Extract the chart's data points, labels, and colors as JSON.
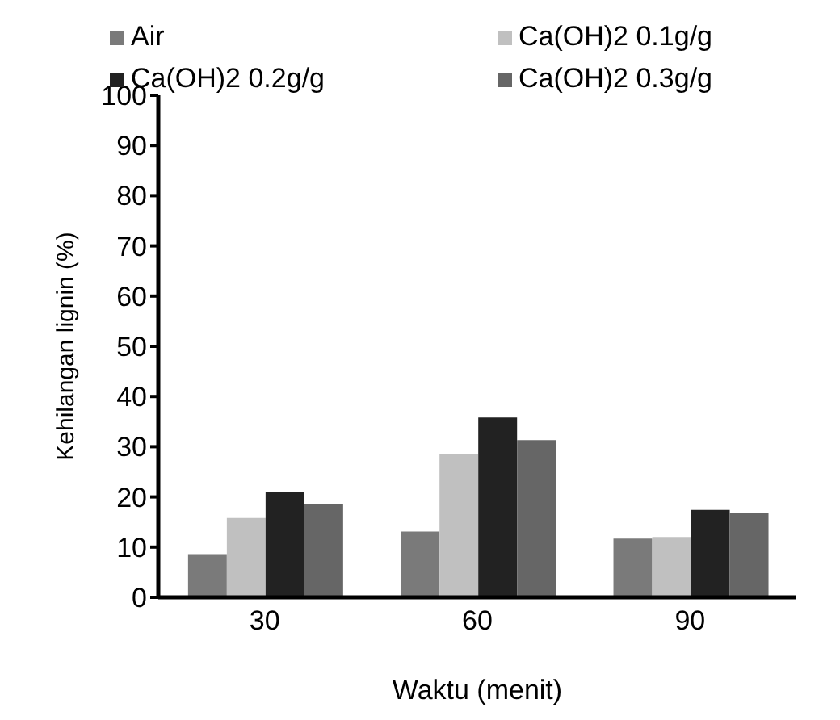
{
  "chart_data": {
    "type": "bar",
    "xlabel": "Waktu (menit)",
    "ylabel": "Kehilangan lignin (%)",
    "categories": [
      "30",
      "60",
      "90"
    ],
    "series": [
      {
        "name": "Air",
        "color": "#7a7a7a",
        "values": [
          8.6,
          13.1,
          11.7
        ]
      },
      {
        "name": "Ca(OH)2 0.1g/g",
        "color": "#c0c0c0",
        "values": [
          15.8,
          28.5,
          12.0
        ]
      },
      {
        "name": "Ca(OH)2 0.2g/g",
        "color": "#222222",
        "values": [
          20.9,
          35.8,
          17.4
        ]
      },
      {
        "name": "Ca(OH)2 0.3g/g",
        "color": "#666666",
        "values": [
          18.6,
          31.3,
          16.9
        ]
      }
    ],
    "ylim": [
      0,
      100
    ],
    "yticks": [
      0,
      10,
      20,
      30,
      40,
      50,
      60,
      70,
      80,
      90,
      100
    ],
    "grid": false,
    "legend": "top"
  }
}
